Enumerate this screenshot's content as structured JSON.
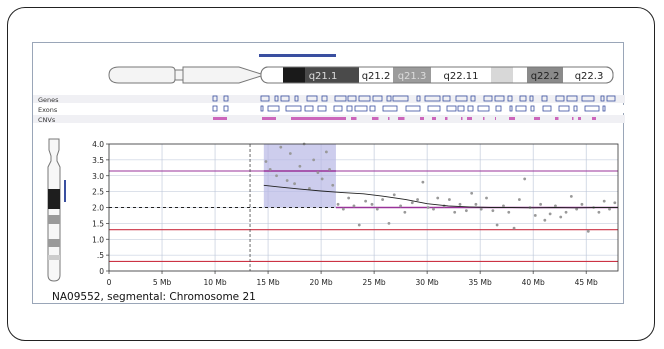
{
  "ideogram": {
    "bands": [
      "q21.1",
      "q21.2",
      "q21.3",
      "q22.11",
      "q22.2",
      "q22.3"
    ]
  },
  "tracks": {
    "labels": [
      "Genes",
      "Exons",
      "CNVs"
    ]
  },
  "caption": "NA09552, segmental: Chromosome 21",
  "colors": {
    "axis": "#333333",
    "grid": "#b9c3d6",
    "copy_line_purple": "#993399",
    "copy_line_red": "#cc3344",
    "points": "#999999",
    "smooth_line": "#222222",
    "highlight": "#b8b8e6",
    "track_blue": "#3a4fa0",
    "cnv_pink": "#cc66bb"
  },
  "chart_data": {
    "type": "scatter",
    "xlabel": "",
    "ylabel": "",
    "ylim": [
      0,
      4.0
    ],
    "xlim": [
      0,
      48
    ],
    "x_ticks": [
      0,
      5,
      10,
      15,
      20,
      25,
      30,
      35,
      40,
      45
    ],
    "x_tick_labels": [
      "0",
      "5 Mb",
      "10 Mb",
      "15 Mb",
      "20 Mb",
      "25 Mb",
      "30 Mb",
      "35 Mb",
      "40 Mb",
      "45 Mb"
    ],
    "y_ticks": [
      0,
      0.5,
      1.0,
      1.5,
      2.0,
      2.5,
      3.0,
      3.5,
      4.0
    ],
    "y_tick_labels": [
      "0",
      ".5",
      "1.0",
      "1.5",
      "2.0",
      "2.5",
      "3.0",
      "3.5",
      "4.0"
    ],
    "grid": true,
    "highlight_region": [
      14.6,
      21.4
    ],
    "centromere_x": 13.3,
    "reference_lines": [
      {
        "y": 2.0,
        "style": "dashed",
        "color": "#222222"
      },
      {
        "y": 3.15,
        "style": "solid",
        "color": "#993399"
      },
      {
        "y": 1.3,
        "style": "solid",
        "color": "#cc3344"
      },
      {
        "y": 0.3,
        "style": "solid",
        "color": "#cc3344"
      }
    ],
    "segments": [
      {
        "x": [
          14.6,
          21.4
        ],
        "y": 3.15
      },
      {
        "x": [
          21.4,
          48
        ],
        "y": 2.0
      }
    ],
    "points": [
      [
        14.8,
        3.45
      ],
      [
        15.2,
        3.2
      ],
      [
        15.8,
        3.0
      ],
      [
        16.2,
        3.9
      ],
      [
        16.8,
        2.85
      ],
      [
        17.1,
        3.7
      ],
      [
        17.5,
        2.75
      ],
      [
        18.0,
        3.3
      ],
      [
        18.4,
        4.0
      ],
      [
        18.9,
        2.6
      ],
      [
        19.3,
        3.5
      ],
      [
        19.7,
        3.1
      ],
      [
        20.1,
        2.9
      ],
      [
        20.5,
        3.75
      ],
      [
        20.8,
        3.2
      ],
      [
        21.1,
        2.7
      ],
      [
        21.6,
        2.1
      ],
      [
        22.1,
        1.95
      ],
      [
        22.6,
        2.3
      ],
      [
        23.1,
        2.05
      ],
      [
        23.6,
        1.45
      ],
      [
        24.2,
        2.2
      ],
      [
        24.8,
        2.1
      ],
      [
        25.3,
        1.95
      ],
      [
        25.8,
        2.25
      ],
      [
        26.4,
        1.5
      ],
      [
        26.9,
        2.4
      ],
      [
        27.5,
        2.05
      ],
      [
        27.9,
        1.85
      ],
      [
        28.6,
        2.15
      ],
      [
        29.1,
        2.25
      ],
      [
        29.6,
        2.8
      ],
      [
        30.1,
        2.0
      ],
      [
        30.6,
        1.95
      ],
      [
        31.0,
        2.3
      ],
      [
        31.6,
        2.05
      ],
      [
        32.1,
        2.25
      ],
      [
        32.6,
        1.85
      ],
      [
        33.1,
        2.1
      ],
      [
        33.7,
        1.9
      ],
      [
        34.2,
        2.45
      ],
      [
        34.6,
        2.1
      ],
      [
        35.1,
        1.95
      ],
      [
        35.6,
        2.3
      ],
      [
        36.2,
        1.9
      ],
      [
        36.6,
        1.45
      ],
      [
        37.2,
        2.05
      ],
      [
        37.7,
        1.85
      ],
      [
        38.2,
        1.35
      ],
      [
        38.7,
        2.25
      ],
      [
        39.2,
        2.9
      ],
      [
        39.7,
        2.0
      ],
      [
        40.2,
        1.75
      ],
      [
        40.7,
        2.1
      ],
      [
        41.1,
        1.6
      ],
      [
        41.6,
        1.8
      ],
      [
        42.1,
        2.05
      ],
      [
        42.6,
        1.7
      ],
      [
        43.1,
        1.85
      ],
      [
        43.6,
        2.35
      ],
      [
        44.1,
        1.95
      ],
      [
        44.6,
        2.1
      ],
      [
        45.2,
        1.25
      ],
      [
        45.7,
        2.0
      ],
      [
        46.2,
        1.85
      ],
      [
        46.7,
        2.2
      ],
      [
        47.2,
        1.95
      ],
      [
        47.7,
        2.15
      ]
    ],
    "smooth_line": {
      "x": [
        14.6,
        16,
        18,
        20,
        22,
        24,
        26,
        28,
        30,
        32,
        34,
        36,
        38,
        40,
        42,
        44,
        46,
        48
      ],
      "y": [
        2.7,
        2.65,
        2.58,
        2.52,
        2.47,
        2.43,
        2.35,
        2.25,
        2.12,
        2.05,
        2.02,
        2.0,
        2.0,
        1.99,
        2.0,
        1.99,
        2.0,
        2.0
      ]
    }
  }
}
